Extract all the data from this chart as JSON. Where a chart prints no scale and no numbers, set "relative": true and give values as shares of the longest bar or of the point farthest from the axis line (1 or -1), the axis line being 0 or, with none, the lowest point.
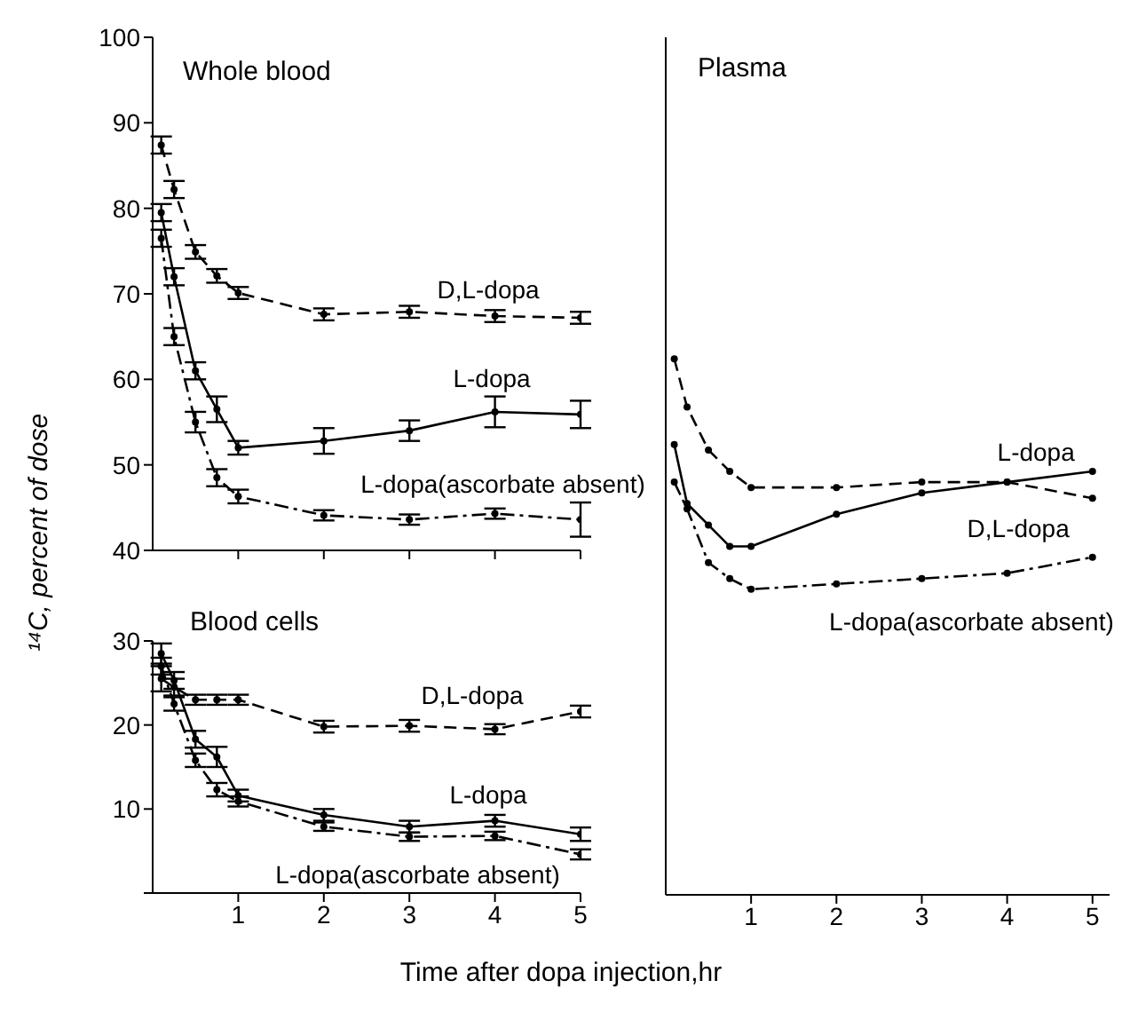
{
  "chart_data": [
    {
      "type": "line",
      "title": "Whole blood",
      "ylabel": "¹⁴C, percent of dose",
      "x": [
        0.1,
        0.25,
        0.5,
        0.75,
        1,
        2,
        3,
        4,
        5
      ],
      "xlim": [
        0,
        5
      ],
      "xticks": [
        1,
        2,
        3,
        4,
        5
      ],
      "ylim": [
        40,
        100
      ],
      "yticks": [
        40,
        50,
        60,
        70,
        80,
        90,
        100
      ],
      "tick_labels": "y",
      "grid": false,
      "legend": false,
      "marker": "circle",
      "series": [
        {
          "name": "D,L-dopa",
          "color": "#000000",
          "line_style": "dashed",
          "values": [
            87.4,
            82.2,
            74.9,
            72.1,
            70.1,
            67.6,
            67.9,
            67.4,
            67.2
          ],
          "errors": [
            1,
            1,
            0.8,
            0.8,
            0.7,
            0.7,
            0.7,
            0.7,
            0.7
          ]
        },
        {
          "name": "L-dopa",
          "color": "#000000",
          "line_style": "solid",
          "values": [
            79.5,
            72,
            61,
            56.5,
            52,
            52.8,
            54,
            56.2,
            55.9
          ],
          "errors": [
            1,
            1,
            1,
            1.5,
            0.8,
            1.5,
            1.2,
            1.8,
            1.6
          ]
        },
        {
          "name": "L-dopa(ascorbate absent)",
          "color": "#000000",
          "line_style": "dotted",
          "values": [
            76.5,
            65,
            55,
            48.5,
            46.3,
            44.1,
            43.6,
            44.3,
            43.6
          ],
          "errors": [
            1,
            1,
            1.2,
            1,
            0.8,
            0.6,
            0.6,
            0.6,
            2
          ]
        }
      ]
    },
    {
      "type": "line",
      "title": "Blood cells",
      "xlabel": "Time after dopa injection,hr",
      "x": [
        0.1,
        0.25,
        0.5,
        0.75,
        1,
        2,
        3,
        4,
        5
      ],
      "xlim": [
        0,
        5
      ],
      "xticks": [
        1,
        2,
        3,
        4,
        5
      ],
      "ylim": [
        0,
        30
      ],
      "yticks": [
        {
          "value": 0,
          "label": null
        },
        10,
        20,
        30
      ],
      "grid": false,
      "legend": false,
      "marker": "circle",
      "series": [
        {
          "name": "D,L-dopa",
          "color": "#000000",
          "line_style": "dashed",
          "values": [
            25.5,
            24.5,
            23,
            23,
            23,
            19.8,
            19.9,
            19.5,
            21.6
          ],
          "errors": [
            1.5,
            1,
            0.6,
            0.6,
            0.6,
            0.7,
            0.7,
            0.6,
            0.7
          ]
        },
        {
          "name": "L-dopa",
          "color": "#000000",
          "line_style": "solid",
          "values": [
            28.5,
            25.3,
            18.3,
            16.2,
            11.6,
            9.3,
            7.9,
            8.6,
            7.0
          ],
          "errors": [
            1.2,
            1,
            1,
            1.2,
            0.7,
            0.7,
            0.7,
            0.7,
            0.8
          ]
        },
        {
          "name": "L-dopa(ascorbate absent)",
          "color": "#000000",
          "line_style": "dotted",
          "values": [
            27,
            22.5,
            15.8,
            12.3,
            10.9,
            7.9,
            6.7,
            6.8,
            4.6
          ],
          "errors": [
            1,
            0.8,
            0.8,
            0.8,
            0.6,
            0.5,
            0.5,
            0.5,
            0.6
          ]
        }
      ]
    },
    {
      "type": "line",
      "title": "Plasma",
      "relative": true,
      "x": [
        0.1,
        0.25,
        0.5,
        0.75,
        1,
        2,
        3,
        4,
        5
      ],
      "xlim": [
        0,
        5.2
      ],
      "xticks": [
        1,
        2,
        3,
        4,
        5
      ],
      "grid": false,
      "legend": false,
      "marker": "circle",
      "series": [
        {
          "name": "L-dopa",
          "color": "#000000",
          "line_style": "solid",
          "values": [
            0.84,
            0.73,
            0.69,
            0.65,
            0.65,
            0.71,
            0.75,
            0.77,
            0.79
          ]
        },
        {
          "name": "D,L-dopa",
          "color": "#000000",
          "line_style": "dashed",
          "values": [
            1,
            0.91,
            0.83,
            0.79,
            0.76,
            0.76,
            0.77,
            0.77,
            0.74
          ]
        },
        {
          "name": "L-dopa(ascorbate absent)",
          "color": "#000000",
          "line_style": "dotted",
          "values": [
            0.77,
            0.72,
            0.62,
            0.59,
            0.57,
            0.58,
            0.59,
            0.6,
            0.63
          ]
        }
      ]
    }
  ]
}
